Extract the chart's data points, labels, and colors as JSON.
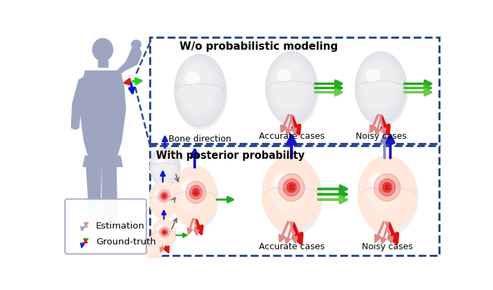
{
  "bg_color": "#ffffff",
  "figure_size": [
    7.14,
    4.2
  ],
  "dpi": 100,
  "box1_title": "W/o probabilistic modeling",
  "box2_title": "With posterior probability",
  "label1_bone": "Bone direction",
  "label2_accurate": "Accurate cases",
  "label3_noisy": "Noisy cases",
  "legend_estimation": "Estimation",
  "legend_ground_truth": "Ground-truth",
  "box_color": "#2a4a8a",
  "human_body_color": "#9da5c0",
  "sphere_white": "#f2f2f2",
  "sphere_warm": "#fce8da",
  "arrow_blue_dark": "#1515cc",
  "arrow_blue_light": "#8888cc",
  "arrow_green_dark": "#22aa22",
  "arrow_green_light": "#88cc88",
  "arrow_red": "#dd1111",
  "arrow_pink": "#dd8888"
}
